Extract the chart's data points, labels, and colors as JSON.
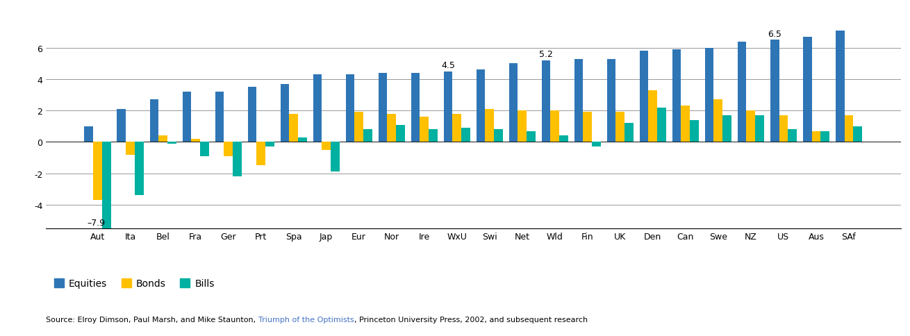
{
  "categories": [
    "Aut",
    "Ita",
    "Bel",
    "Fra",
    "Ger",
    "Prt",
    "Spa",
    "Jap",
    "Eur",
    "Nor",
    "Ire",
    "WxU",
    "Swi",
    "Net",
    "Wld",
    "Fin",
    "UK",
    "Den",
    "Can",
    "Swe",
    "NZ",
    "US",
    "Aus",
    "SAf"
  ],
  "equities": [
    1.0,
    2.1,
    2.7,
    3.2,
    3.2,
    3.5,
    3.7,
    4.3,
    4.3,
    4.4,
    4.4,
    4.5,
    4.6,
    5.0,
    5.2,
    5.3,
    5.3,
    5.8,
    5.9,
    6.0,
    6.4,
    6.5,
    6.7,
    7.1
  ],
  "bonds": [
    -3.7,
    -0.8,
    0.4,
    0.2,
    -0.9,
    -1.5,
    1.8,
    -0.5,
    1.9,
    1.8,
    1.6,
    1.8,
    2.1,
    2.0,
    2.0,
    1.9,
    1.9,
    3.3,
    2.3,
    2.7,
    2.0,
    1.7,
    0.7,
    1.7
  ],
  "bills": [
    -7.9,
    -3.4,
    -0.1,
    -0.9,
    -2.2,
    -0.3,
    0.3,
    -1.9,
    0.8,
    1.1,
    0.8,
    0.9,
    0.8,
    0.7,
    0.4,
    -0.3,
    1.2,
    2.2,
    1.4,
    1.7,
    1.7,
    0.8,
    0.7,
    1.0
  ],
  "equity_color": "#2E75B6",
  "bond_color": "#FFC000",
  "bill_color": "#00B0A0",
  "ylim_min": -5.5,
  "ylim_max": 7.8,
  "yticks": [
    -4,
    -2,
    0,
    2,
    4,
    6
  ],
  "ytick_labels": [
    "-4",
    "-2",
    "0",
    "2",
    "4",
    "6"
  ],
  "source_text": "Source: Elroy Dimson, Paul Marsh, and Mike Staunton, ",
  "source_link": "Triumph of the Optimists",
  "source_rest": ", Princeton University Press, 2002, and subsequent research",
  "source_link_color": "#4472C4",
  "legend_labels": [
    "Equities",
    "Bonds",
    "Bills"
  ],
  "bar_width": 0.27,
  "annot_eq_indices": [
    11,
    14,
    21
  ],
  "annot_eq_labels": [
    "4.5",
    "5.2",
    "6.5"
  ],
  "annot_bill_index": 0,
  "annot_bill_label": "–7.9"
}
